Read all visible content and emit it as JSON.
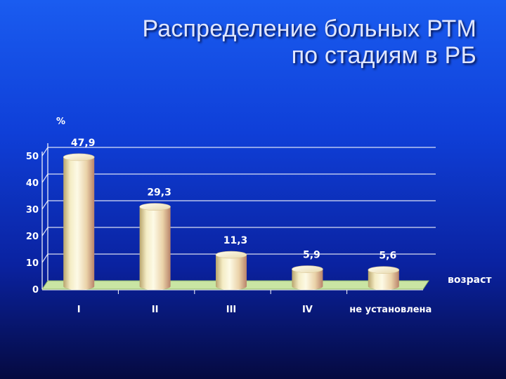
{
  "title": {
    "line1": "Распределение больных РТМ",
    "line2": "по стадиям в РБ"
  },
  "chart_data": {
    "type": "bar",
    "style": "3d-cylinder",
    "categories": [
      "I",
      "II",
      "III",
      "IV",
      "не установлена"
    ],
    "values": [
      47.9,
      29.3,
      11.3,
      5.9,
      5.6
    ],
    "value_labels": [
      "47,9",
      "29,3",
      "11,3",
      "5,9",
      "5,6"
    ],
    "ylabel": "%",
    "xlabel": "возраст",
    "ylim": [
      0,
      50
    ],
    "yticks": [
      "0",
      "10",
      "20",
      "30",
      "40",
      "50"
    ],
    "grid": true,
    "colors": {
      "bar_light": "#fbf6d8",
      "bar_mid": "#e6d7a6",
      "bar_dark": "#b88c6a",
      "floor": "#c9e5a3",
      "grid": "#ffffff",
      "text": "#ffffff"
    }
  }
}
